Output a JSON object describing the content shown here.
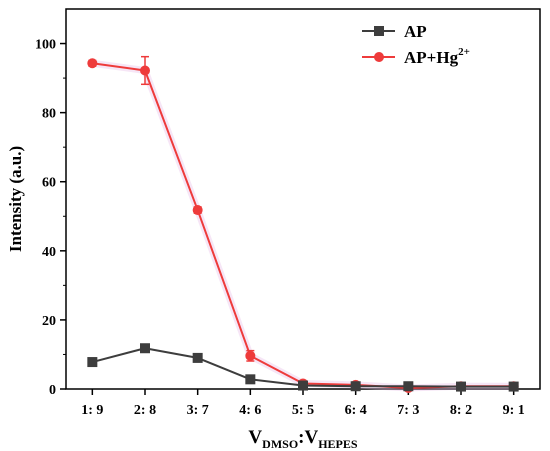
{
  "colors": {
    "ap": "#3d3d3d",
    "ap_hg": "#ee3b3b",
    "axis": "#000000",
    "mix_shadow": "#e6b8e6"
  },
  "chart_data": {
    "type": "line",
    "x": [
      "1: 9",
      "2: 8",
      "3: 7",
      "4: 6",
      "5: 5",
      "6: 4",
      "7: 3",
      "8: 2",
      "9: 1"
    ],
    "xlabel": {
      "main": "V",
      "sub1": "DMSO",
      "sep": ":",
      "main2": "V",
      "sub2": "HEPES"
    },
    "ylabel": "Intensity (a.u.)",
    "ylim": [
      0,
      110
    ],
    "yticks": [
      0,
      20,
      40,
      60,
      80,
      100
    ],
    "series": [
      {
        "name": "AP",
        "marker": "square",
        "values": [
          7.8,
          11.8,
          9.0,
          2.8,
          1.0,
          0.8,
          0.8,
          0.7,
          0.7
        ],
        "errors": [
          0.6,
          0.8,
          0.6,
          0.5,
          0.3,
          0.2,
          0.2,
          0.2,
          0.2
        ]
      },
      {
        "name": "AP+Hg",
        "name_sup": "2+",
        "marker": "circle",
        "values": [
          94.3,
          92.2,
          51.8,
          9.6,
          1.6,
          1.2,
          0.3,
          0.8,
          0.8
        ],
        "errors": [
          0.8,
          4.0,
          0.9,
          1.5,
          0.4,
          0.3,
          0.3,
          0.3,
          0.3
        ]
      }
    ],
    "legend_position": "top-right",
    "grid": false
  }
}
